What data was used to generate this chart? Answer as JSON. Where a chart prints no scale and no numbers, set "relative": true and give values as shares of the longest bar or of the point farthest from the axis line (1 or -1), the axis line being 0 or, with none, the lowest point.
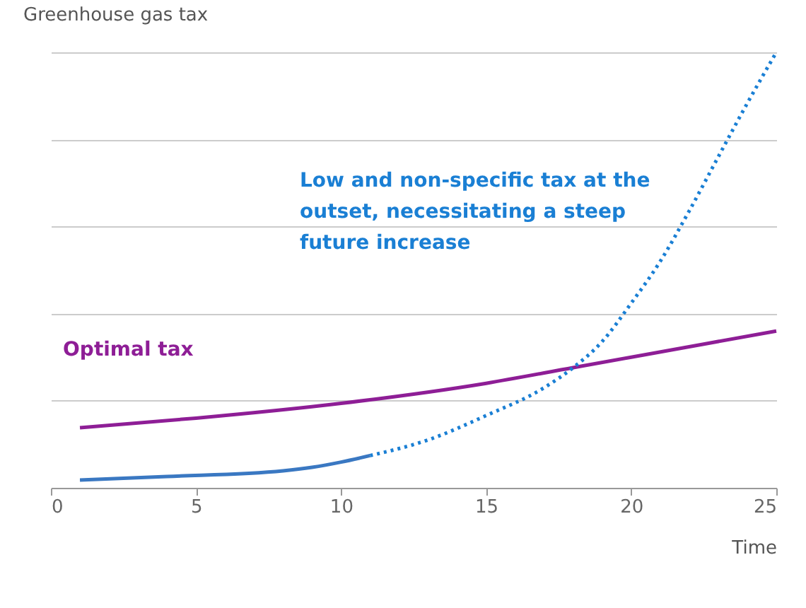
{
  "chart_data": {
    "type": "line",
    "relative": true,
    "ylabel": "Greenhouse gas tax",
    "xlabel": "Time",
    "xlim": [
      0,
      25
    ],
    "xticks": [
      0,
      5,
      10,
      15,
      20,
      25
    ],
    "grid": "y",
    "tick_labels": "x",
    "marker": "none",
    "annotations": [
      "Low and non-specific tax at the\noutset, necessitating a steep\nfuture increase"
    ],
    "series": [
      {
        "name": "Optimal tax",
        "color": "#8e1e96",
        "line_style": "solid",
        "x": [
          1,
          5,
          10,
          15,
          18,
          20,
          25
        ],
        "values": [
          0.138,
          0.16,
          0.194,
          0.24,
          0.276,
          0.3,
          0.36
        ]
      },
      {
        "color": "#3a78c2",
        "line_style": "solid",
        "x": [
          1,
          4,
          8,
          9,
          10,
          11
        ],
        "values": [
          0.018,
          0.026,
          0.039,
          0.047,
          0.059,
          0.074
        ]
      },
      {
        "color": "#1a7fd4",
        "line_style": "dotted",
        "x": [
          11,
          13,
          15,
          17,
          18,
          19,
          20,
          21,
          22,
          23,
          24,
          25
        ],
        "values": [
          0.074,
          0.11,
          0.166,
          0.23,
          0.276,
          0.336,
          0.424,
          0.52,
          0.636,
          0.76,
          0.883,
          1
        ]
      }
    ]
  }
}
